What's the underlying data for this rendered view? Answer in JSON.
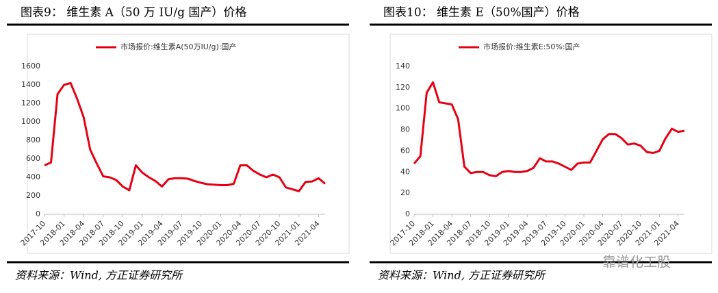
{
  "chart_data": [
    {
      "type": "line",
      "title": "图表9：  维生素 A（50 万 IU/g 国产）价格",
      "source": "资料来源：Wind, 方正证券研究所",
      "x": [
        "2017-10",
        "2017-11",
        "2017-12",
        "2018-01",
        "2018-02",
        "2018-03",
        "2018-04",
        "2018-05",
        "2018-06",
        "2018-07",
        "2018-08",
        "2018-09",
        "2018-10",
        "2018-11",
        "2018-12",
        "2019-01",
        "2019-02",
        "2019-03",
        "2019-04",
        "2019-05",
        "2019-06",
        "2019-07",
        "2019-08",
        "2019-09",
        "2019-10",
        "2019-11",
        "2019-12",
        "2020-01",
        "2020-02",
        "2020-03",
        "2020-04",
        "2020-05",
        "2020-06",
        "2020-07",
        "2020-08",
        "2020-09",
        "2020-10",
        "2020-11",
        "2020-12",
        "2021-01",
        "2021-02",
        "2021-03",
        "2021-04",
        "2021-05"
      ],
      "xticks": [
        "2017-10",
        "2018-01",
        "2018-04",
        "2018-07",
        "2018-10",
        "2019-01",
        "2019-04",
        "2019-07",
        "2019-10",
        "2020-01",
        "2020-04",
        "2020-07",
        "2020-10",
        "2021-01",
        "2021-04"
      ],
      "series": [
        {
          "name": "市场报价:维生素A(50万IU/g):国产",
          "color": "#e60012",
          "values": [
            530,
            560,
            1300,
            1400,
            1420,
            1250,
            1050,
            700,
            550,
            410,
            400,
            370,
            300,
            260,
            530,
            450,
            400,
            360,
            300,
            380,
            390,
            390,
            385,
            360,
            340,
            325,
            320,
            315,
            315,
            330,
            530,
            530,
            470,
            430,
            400,
            430,
            400,
            290,
            270,
            250,
            350,
            355,
            390,
            330
          ]
        }
      ],
      "ylim": [
        0,
        1600
      ],
      "yticks": [
        0,
        200,
        400,
        600,
        800,
        1000,
        1200,
        1400,
        1600
      ],
      "legend": "top"
    },
    {
      "type": "line",
      "title": "图表10：  维生素 E（50%国产）价格",
      "source": "资料来源：Wind, 方正证券研究所",
      "x": [
        "2017-10",
        "2017-11",
        "2017-12",
        "2018-01",
        "2018-02",
        "2018-03",
        "2018-04",
        "2018-05",
        "2018-06",
        "2018-07",
        "2018-08",
        "2018-09",
        "2018-10",
        "2018-11",
        "2018-12",
        "2019-01",
        "2019-02",
        "2019-03",
        "2019-04",
        "2019-05",
        "2019-06",
        "2019-07",
        "2019-08",
        "2019-09",
        "2019-10",
        "2019-11",
        "2019-12",
        "2020-01",
        "2020-02",
        "2020-03",
        "2020-04",
        "2020-05",
        "2020-06",
        "2020-07",
        "2020-08",
        "2020-09",
        "2020-10",
        "2020-11",
        "2020-12",
        "2021-01",
        "2021-02",
        "2021-03",
        "2021-04",
        "2021-05"
      ],
      "xticks": [
        "2017-10",
        "2018-01",
        "2018-04",
        "2018-07",
        "2018-10",
        "2019-01",
        "2019-04",
        "2019-07",
        "2019-10",
        "2020-01",
        "2020-04",
        "2020-07",
        "2020-10",
        "2021-01",
        "2021-04"
      ],
      "series": [
        {
          "name": "市场报价:维生素E:50%:国产",
          "color": "#e60012",
          "values": [
            48,
            55,
            115,
            125,
            106,
            105,
            104,
            90,
            45,
            39,
            40,
            40,
            37,
            36,
            40,
            41,
            40,
            40,
            41,
            44,
            53,
            50,
            50,
            48,
            45,
            42,
            48,
            49,
            49,
            60,
            71,
            76,
            76,
            72,
            66,
            67,
            65,
            59,
            58,
            60,
            72,
            81,
            78,
            79
          ]
        }
      ],
      "ylim": [
        0,
        140
      ],
      "yticks": [
        0,
        20,
        40,
        60,
        80,
        100,
        120,
        140
      ],
      "legend": "top"
    }
  ],
  "watermark": "靠谱化工股"
}
